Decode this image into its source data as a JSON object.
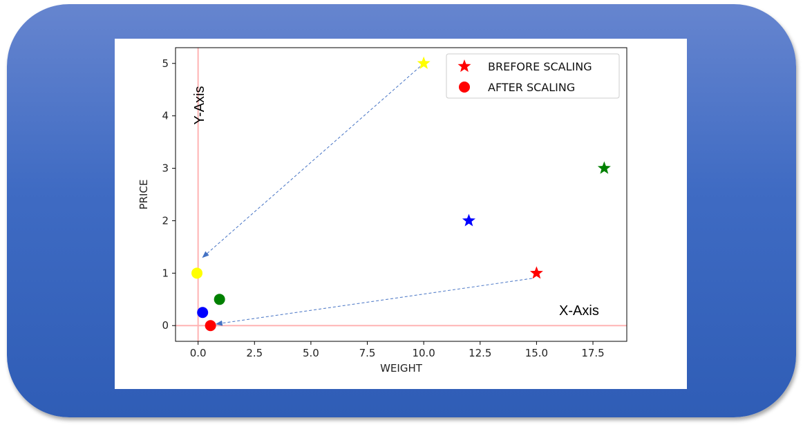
{
  "colors": {
    "frame_top": "#6685cf",
    "frame_bottom": "#2f5db6",
    "origin_lines": "#ffb3b3",
    "arrow": "#4472c4"
  },
  "chart_data": {
    "type": "scatter",
    "xlabel": "WEIGHT",
    "ylabel": "PRICE",
    "xlim": [
      -1,
      19
    ],
    "ylim": [
      -0.3,
      5.3
    ],
    "x_ticks": [
      "0.0",
      "2.5",
      "5.0",
      "7.5",
      "10.0",
      "12.5",
      "15.0",
      "17.5"
    ],
    "x_tick_values": [
      0,
      2.5,
      5,
      7.5,
      10,
      12.5,
      15,
      17.5
    ],
    "y_ticks": [
      "0",
      "1",
      "2",
      "3",
      "4",
      "5"
    ],
    "y_tick_values": [
      0,
      1,
      2,
      3,
      4,
      5
    ],
    "grid": false,
    "legend_position": "top-right",
    "series": [
      {
        "name": "BREFORE SCALING",
        "marker": "star",
        "points": [
          {
            "x": 15,
            "y": 1,
            "color": "#ff0000"
          },
          {
            "x": 12,
            "y": 2,
            "color": "#0000ff"
          },
          {
            "x": 18,
            "y": 3,
            "color": "#008000"
          },
          {
            "x": 10,
            "y": 5,
            "color": "#ffff00"
          }
        ]
      },
      {
        "name": "AFTER SCALING",
        "marker": "circle",
        "points": [
          {
            "x": 0.55,
            "y": 0.0,
            "color": "#ff0000"
          },
          {
            "x": 0.2,
            "y": 0.25,
            "color": "#0000ff"
          },
          {
            "x": 0.95,
            "y": 0.5,
            "color": "#008000"
          },
          {
            "x": -0.05,
            "y": 1.0,
            "color": "#ffff00"
          }
        ]
      }
    ],
    "reference_lines": {
      "x": 0,
      "y": 0
    },
    "annotations": [
      {
        "text": "Y-Axis",
        "x": 0.1,
        "y": 4.2,
        "rotate": -90
      },
      {
        "text": "X-Axis",
        "x": 16,
        "y": 0.2,
        "rotate": 0
      }
    ],
    "arrows": [
      {
        "from": [
          10,
          5
        ],
        "to": [
          0.2,
          1.3
        ]
      },
      {
        "from": [
          14.8,
          0.9
        ],
        "to": [
          0.8,
          0.03
        ]
      }
    ]
  }
}
